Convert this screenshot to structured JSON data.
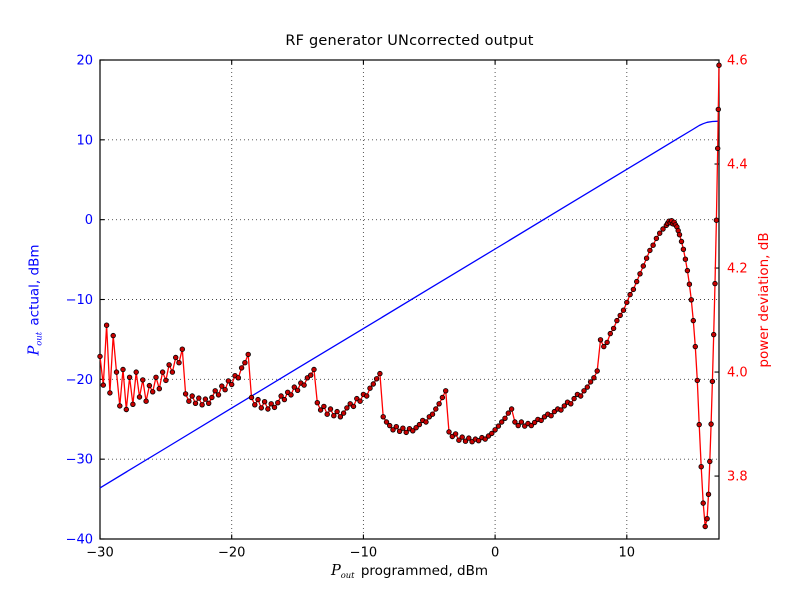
{
  "chart_data": {
    "type": "line",
    "title": "RF generator UNcorrected output",
    "xlabel": {
      "math": "P",
      "sub": "out",
      "rest": " programmed, dBm"
    },
    "ylabel_left": {
      "math": "P",
      "sub": "out",
      "rest": " actual, dBm"
    },
    "ylabel_right": "power deviation, dB",
    "xlim": [
      -30,
      17
    ],
    "ylim_left": [
      -40,
      20
    ],
    "ylim_right": [
      3.679,
      4.6
    ],
    "xticks": [
      {
        "v": -30,
        "label": "−30"
      },
      {
        "v": -20,
        "label": "−20"
      },
      {
        "v": -10,
        "label": "−10"
      },
      {
        "v": 0,
        "label": "0"
      },
      {
        "v": 10,
        "label": "10"
      }
    ],
    "yticks_left": [
      {
        "v": 20,
        "label": "20"
      },
      {
        "v": 10,
        "label": "10"
      },
      {
        "v": 0,
        "label": "0"
      },
      {
        "v": -10,
        "label": "−10"
      },
      {
        "v": -20,
        "label": "−20"
      },
      {
        "v": -30,
        "label": "−30"
      },
      {
        "v": -40,
        "label": "−40"
      }
    ],
    "yticks_right": [
      {
        "v": 4.6,
        "label": "4.6"
      },
      {
        "v": 4.4,
        "label": "4.4"
      },
      {
        "v": 4.2,
        "label": "4.2"
      },
      {
        "v": 4.0,
        "label": "4.0"
      },
      {
        "v": 3.8,
        "label": "3.8"
      }
    ],
    "grid": {
      "show": true,
      "style": "dotted",
      "color": "#444444"
    },
    "legend": "none",
    "colors": {
      "actual_line": "#0000ff",
      "deviation_line": "#ff0000",
      "deviation_marker_fill": "#c80000",
      "deviation_marker_edge": "#000000",
      "tick_label_left": "#0000ff",
      "tick_label_right": "#ff0000",
      "tick_label_x": "#000000",
      "spine": "#000000",
      "background": "#ffffff"
    },
    "series": [
      {
        "name": "Pout actual, dBm",
        "axis": "left",
        "color": "#0000ff",
        "marker": "none",
        "points": [
          [
            -30,
            -33.6
          ],
          [
            -25,
            -28.6
          ],
          [
            -20,
            -23.6
          ],
          [
            -15,
            -18.6
          ],
          [
            -10,
            -13.65
          ],
          [
            -5,
            -8.65
          ],
          [
            0,
            -3.67
          ],
          [
            5,
            1.32
          ],
          [
            10,
            6.31
          ],
          [
            12,
            8.3
          ],
          [
            13,
            9.3
          ],
          [
            14,
            10.3
          ],
          [
            15,
            11.3
          ],
          [
            15.5,
            11.8
          ],
          [
            15.8,
            12.02
          ],
          [
            16.1,
            12.2
          ],
          [
            16.5,
            12.3
          ],
          [
            17,
            12.33
          ]
        ]
      },
      {
        "name": "power deviation, dB",
        "axis": "right",
        "color": "#ff0000",
        "marker": "o",
        "points": [
          [
            -30,
            4.03
          ],
          [
            -29.75,
            3.975
          ],
          [
            -29.5,
            4.09
          ],
          [
            -29.25,
            3.96
          ],
          [
            -29,
            4.07
          ],
          [
            -28.75,
            4.0
          ],
          [
            -28.5,
            3.935
          ],
          [
            -28.25,
            4.005
          ],
          [
            -28,
            3.928
          ],
          [
            -27.75,
            3.99
          ],
          [
            -27.5,
            3.938
          ],
          [
            -27.25,
            4.0
          ],
          [
            -27,
            3.952
          ],
          [
            -26.75,
            3.985
          ],
          [
            -26.5,
            3.944
          ],
          [
            -26.25,
            3.974
          ],
          [
            -26,
            3.962
          ],
          [
            -25.75,
            3.99
          ],
          [
            -25.5,
            3.968
          ],
          [
            -25.25,
            4.0
          ],
          [
            -25,
            3.984
          ],
          [
            -24.75,
            4.014
          ],
          [
            -24.5,
            4.0
          ],
          [
            -24.25,
            4.028
          ],
          [
            -24,
            4.018
          ],
          [
            -23.75,
            4.044
          ],
          [
            -23.5,
            3.958
          ],
          [
            -23.25,
            3.944
          ],
          [
            -23,
            3.954
          ],
          [
            -22.75,
            3.94
          ],
          [
            -22.5,
            3.95
          ],
          [
            -22.25,
            3.937
          ],
          [
            -22,
            3.948
          ],
          [
            -21.75,
            3.94
          ],
          [
            -21.5,
            3.951
          ],
          [
            -21.25,
            3.964
          ],
          [
            -21,
            3.956
          ],
          [
            -20.75,
            3.973
          ],
          [
            -20.5,
            3.966
          ],
          [
            -20.25,
            3.983
          ],
          [
            -20,
            3.976
          ],
          [
            -19.75,
            3.993
          ],
          [
            -19.5,
            3.989
          ],
          [
            -19.25,
            4.008
          ],
          [
            -19,
            4.018
          ],
          [
            -18.75,
            4.034
          ],
          [
            -18.5,
            3.951
          ],
          [
            -18.25,
            3.937
          ],
          [
            -18,
            3.947
          ],
          [
            -17.75,
            3.931
          ],
          [
            -17.5,
            3.943
          ],
          [
            -17.25,
            3.929
          ],
          [
            -17,
            3.939
          ],
          [
            -16.75,
            3.932
          ],
          [
            -16.5,
            3.941
          ],
          [
            -16.25,
            3.954
          ],
          [
            -16,
            3.947
          ],
          [
            -15.75,
            3.961
          ],
          [
            -15.5,
            3.956
          ],
          [
            -15.25,
            3.971
          ],
          [
            -15,
            3.965
          ],
          [
            -14.75,
            3.979
          ],
          [
            -14.5,
            3.975
          ],
          [
            -14.25,
            3.989
          ],
          [
            -14,
            3.994
          ],
          [
            -13.75,
            4.005
          ],
          [
            -13.5,
            3.941
          ],
          [
            -13.25,
            3.927
          ],
          [
            -13,
            3.934
          ],
          [
            -12.75,
            3.919
          ],
          [
            -12.5,
            3.929
          ],
          [
            -12.25,
            3.916
          ],
          [
            -12,
            3.924
          ],
          [
            -11.75,
            3.914
          ],
          [
            -11.5,
            3.921
          ],
          [
            -11.25,
            3.931
          ],
          [
            -11,
            3.939
          ],
          [
            -10.75,
            3.934
          ],
          [
            -10.5,
            3.949
          ],
          [
            -10.25,
            3.944
          ],
          [
            -10,
            3.957
          ],
          [
            -9.75,
            3.954
          ],
          [
            -9.5,
            3.969
          ],
          [
            -9.25,
            3.977
          ],
          [
            -9,
            3.987
          ],
          [
            -8.75,
            3.997
          ],
          [
            -8.5,
            3.914
          ],
          [
            -8.25,
            3.904
          ],
          [
            -8,
            3.897
          ],
          [
            -7.75,
            3.889
          ],
          [
            -7.5,
            3.895
          ],
          [
            -7.25,
            3.886
          ],
          [
            -7,
            3.892
          ],
          [
            -6.75,
            3.884
          ],
          [
            -6.5,
            3.891
          ],
          [
            -6.25,
            3.887
          ],
          [
            -6,
            3.893
          ],
          [
            -5.75,
            3.899
          ],
          [
            -5.5,
            3.907
          ],
          [
            -5.25,
            3.904
          ],
          [
            -5,
            3.914
          ],
          [
            -4.75,
            3.919
          ],
          [
            -4.5,
            3.929
          ],
          [
            -4.25,
            3.939
          ],
          [
            -4,
            3.951
          ],
          [
            -3.75,
            3.964
          ],
          [
            -3.5,
            3.885
          ],
          [
            -3.25,
            3.876
          ],
          [
            -3,
            3.881
          ],
          [
            -2.75,
            3.869
          ],
          [
            -2.5,
            3.875
          ],
          [
            -2.25,
            3.867
          ],
          [
            -2,
            3.873
          ],
          [
            -1.75,
            3.866
          ],
          [
            -1.5,
            3.871
          ],
          [
            -1.25,
            3.868
          ],
          [
            -1,
            3.874
          ],
          [
            -0.75,
            3.871
          ],
          [
            -0.5,
            3.877
          ],
          [
            -0.25,
            3.882
          ],
          [
            0,
            3.889
          ],
          [
            0.25,
            3.896
          ],
          [
            0.5,
            3.904
          ],
          [
            0.75,
            3.911
          ],
          [
            1,
            3.921
          ],
          [
            1.25,
            3.929
          ],
          [
            1.5,
            3.904
          ],
          [
            1.75,
            3.897
          ],
          [
            2,
            3.904
          ],
          [
            2.25,
            3.896
          ],
          [
            2.5,
            3.901
          ],
          [
            2.75,
            3.897
          ],
          [
            3,
            3.903
          ],
          [
            3.25,
            3.909
          ],
          [
            3.5,
            3.907
          ],
          [
            3.75,
            3.914
          ],
          [
            4,
            3.919
          ],
          [
            4.25,
            3.916
          ],
          [
            4.5,
            3.924
          ],
          [
            4.75,
            3.929
          ],
          [
            5,
            3.927
          ],
          [
            5.25,
            3.935
          ],
          [
            5.5,
            3.942
          ],
          [
            5.75,
            3.939
          ],
          [
            6,
            3.949
          ],
          [
            6.25,
            3.957
          ],
          [
            6.5,
            3.954
          ],
          [
            6.75,
            3.964
          ],
          [
            7,
            3.971
          ],
          [
            7.25,
            3.981
          ],
          [
            7.5,
            3.989
          ],
          [
            7.75,
            4.002
          ],
          [
            8,
            4.062
          ],
          [
            8.25,
            4.049
          ],
          [
            8.5,
            4.057
          ],
          [
            8.75,
            4.074
          ],
          [
            9,
            4.084
          ],
          [
            9.25,
            4.099
          ],
          [
            9.5,
            4.109
          ],
          [
            9.75,
            4.119
          ],
          [
            10,
            4.134
          ],
          [
            10.25,
            4.149
          ],
          [
            10.5,
            4.159
          ],
          [
            10.75,
            4.174
          ],
          [
            11,
            4.189
          ],
          [
            11.25,
            4.204
          ],
          [
            11.5,
            4.219
          ],
          [
            11.75,
            4.234
          ],
          [
            12,
            4.244
          ],
          [
            12.25,
            4.257
          ],
          [
            12.5,
            4.267
          ],
          [
            12.75,
            4.275
          ],
          [
            13,
            4.282
          ],
          [
            13.1,
            4.286
          ],
          [
            13.2,
            4.29
          ],
          [
            13.3,
            4.287
          ],
          [
            13.4,
            4.291
          ],
          [
            13.5,
            4.285
          ],
          [
            13.6,
            4.288
          ],
          [
            13.7,
            4.283
          ],
          [
            13.8,
            4.279
          ],
          [
            13.9,
            4.272
          ],
          [
            14,
            4.264
          ],
          [
            14.15,
            4.251
          ],
          [
            14.3,
            4.236
          ],
          [
            14.45,
            4.217
          ],
          [
            14.6,
            4.195
          ],
          [
            14.75,
            4.169
          ],
          [
            14.9,
            4.139
          ],
          [
            15.05,
            4.099
          ],
          [
            15.2,
            4.049
          ],
          [
            15.35,
            3.984
          ],
          [
            15.5,
            3.899
          ],
          [
            15.65,
            3.818
          ],
          [
            15.8,
            3.748
          ],
          [
            15.95,
            3.703
          ],
          [
            16.1,
            3.718
          ],
          [
            16.2,
            3.765
          ],
          [
            16.3,
            3.828
          ],
          [
            16.4,
            3.9
          ],
          [
            16.5,
            3.982
          ],
          [
            16.6,
            4.072
          ],
          [
            16.7,
            4.17
          ],
          [
            16.8,
            4.292
          ],
          [
            16.9,
            4.43
          ],
          [
            16.95,
            4.505
          ],
          [
            17,
            4.59
          ]
        ]
      }
    ]
  }
}
